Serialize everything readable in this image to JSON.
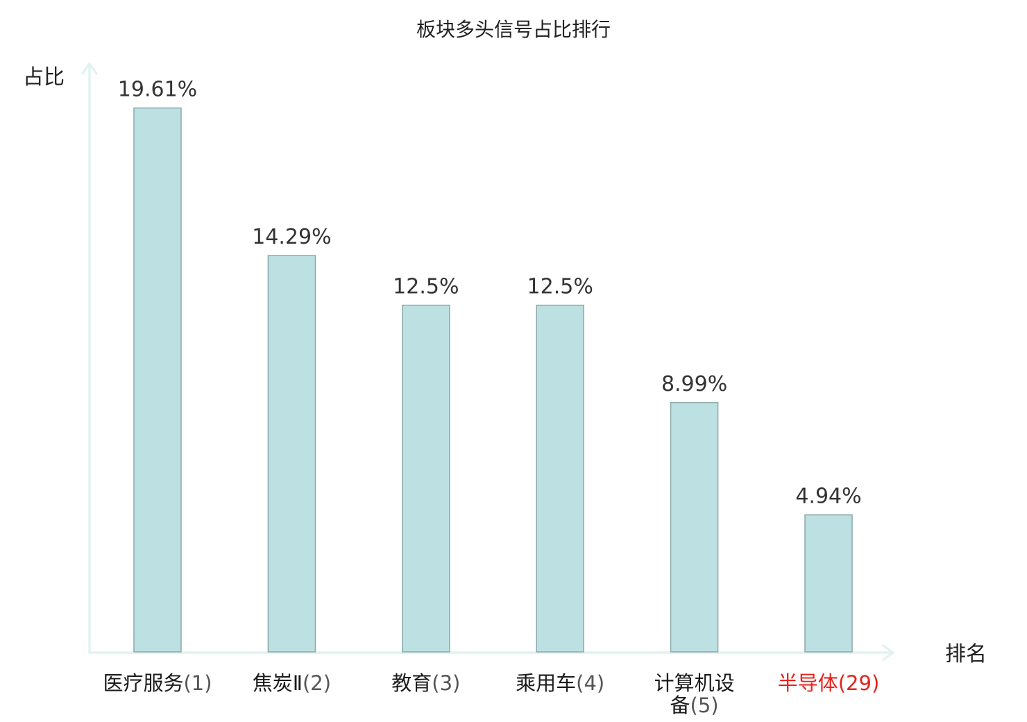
{
  "chart_data": {
    "type": "bar",
    "title": "板块多头信号占比排行",
    "ylabel": "占比",
    "xlabel": "排名",
    "ylim": [
      0,
      20.8
    ],
    "grid": false,
    "legend": "none",
    "bars": [
      {
        "name": "医疗服务",
        "rank": "(1)",
        "name_lines": [
          "医疗服务"
        ],
        "value": 19.61,
        "label": "19.61%",
        "highlight": false
      },
      {
        "name": "焦炭Ⅱ",
        "rank": "(2)",
        "name_lines": [
          "焦炭Ⅱ"
        ],
        "value": 14.29,
        "label": "14.29%",
        "highlight": false
      },
      {
        "name": "教育",
        "rank": "(3)",
        "name_lines": [
          "教育"
        ],
        "value": 12.5,
        "label": "12.5%",
        "highlight": false
      },
      {
        "name": "乘用车",
        "rank": "(4)",
        "name_lines": [
          "乘用车"
        ],
        "value": 12.5,
        "label": "12.5%",
        "highlight": false
      },
      {
        "name": "计算机设备",
        "rank": "(5)",
        "name_lines": [
          "计算机设",
          "备"
        ],
        "value": 8.99,
        "label": "8.99%",
        "highlight": false
      },
      {
        "name": "半导体",
        "rank": "(29)",
        "name_lines": [
          "半导体"
        ],
        "value": 4.94,
        "label": "4.94%",
        "highlight": true
      }
    ]
  },
  "colors": {
    "bar_fill": "#bde0e3",
    "bar_stroke": "#8aa9ab",
    "axis": "#e1f3f1",
    "highlight": "#e8221b"
  }
}
